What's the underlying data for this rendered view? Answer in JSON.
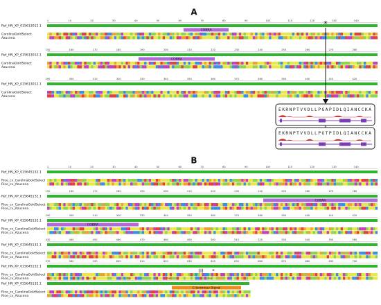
{
  "panels": [
    {
      "label": "A",
      "blocks": [
        {
          "ruler": [
            "1",
            "10",
            "20",
            "30",
            "40",
            "50",
            "60",
            "70",
            "80",
            "90",
            "100",
            "110",
            "120",
            "130",
            "140"
          ],
          "ref": "Ref_HN_XP_015613012.1",
          "rows": [
            "CarolinaGoldSelect",
            "Azucena"
          ],
          "features": [
            "COBRA"
          ],
          "marks": [
            "*"
          ]
        },
        {
          "ruler": [
            "150",
            "160",
            "170",
            "180",
            "190",
            "200",
            "210",
            "220",
            "230",
            "240",
            "250",
            "260",
            "270",
            "280"
          ],
          "ref": "Ref_HN_XP_015613012.1",
          "rows": [
            "CarolinaGoldSelect",
            "Azucena"
          ],
          "features": [
            "COBRA"
          ]
        },
        {
          "ruler": [
            "290",
            "300",
            "310",
            "320",
            "330",
            "340",
            "350",
            "360",
            "370",
            "380",
            "390",
            "400",
            "410",
            "420"
          ],
          "ref": "Ref_HN_XP_015613012.1",
          "rows": [
            "CarolinaGoldSelect",
            "Azucena"
          ]
        }
      ],
      "inset": [
        "EKRNPTVVDLLPGAPIDLQIANCCKA",
        "EKRNPTVVDLLPGTPIDLQIANCCKA"
      ]
    },
    {
      "label": "B",
      "blocks": [
        {
          "ruler": [
            "1",
            "10",
            "20",
            "30",
            "40",
            "50",
            "60",
            "70",
            "80",
            "90",
            "100",
            "110",
            "120",
            "130",
            "140"
          ],
          "ref": "Ref_HN_XP_015645132.1",
          "rows": [
            "Rice_cv_CarolinaGoldSelect",
            "Rice_cv_Azucena"
          ]
        },
        {
          "ruler": [
            "150",
            "160",
            "170",
            "180",
            "190",
            "200",
            "210",
            "220",
            "230",
            "240",
            "250",
            "260",
            "270",
            "280"
          ],
          "ref": "Ref_HN_XP_015645132.1",
          "rows": [
            "Rice_cv_CarolinaGoldSelect",
            "Rice_cv_Azucena"
          ],
          "features": [
            "COBRA"
          ]
        },
        {
          "ruler": [
            "290",
            "300",
            "310",
            "320",
            "330",
            "340",
            "350",
            "360",
            "370",
            "380",
            "390",
            "400",
            "410",
            "420"
          ],
          "ref": "Ref_HN_XP_015645132.1",
          "rows": [
            "Rice_cv_CarolinaGoldSelect",
            "Rice_cv_Azucena"
          ],
          "features": [
            "COBRA"
          ]
        },
        {
          "ruler": [
            "430",
            "440",
            "450",
            "460",
            "470",
            "480",
            "490",
            "500",
            "510",
            "520",
            "530",
            "540",
            "550",
            "560"
          ],
          "ref": "Ref_HN_XP_015645132.1",
          "rows": [
            "Rice_cv_CarolinaGoldSelect",
            "Rice_cv_Azucena"
          ]
        },
        {
          "ruler": [
            "570",
            "580",
            "590",
            "600",
            "610",
            "620",
            "630",
            "640",
            "650",
            "660",
            "670",
            "680",
            "690",
            "700"
          ],
          "ref": "Ref_HN_XP_015645132.1",
          "rows": [
            "Rice_cv_CarolinaGoldSelect",
            "Rice_cv_Azucena"
          ],
          "marks": [
            "(I)",
            "*"
          ]
        },
        {
          "ruler": [
            "710",
            "720",
            "730",
            "740",
            "750"
          ],
          "ref": "Ref_HN_XP_015645132.1",
          "rows": [
            "Rice_cv_CarolinaGoldSelect",
            "Rice_cv_Azucena"
          ],
          "features": [
            "C-terminus Signal"
          ]
        }
      ]
    }
  ]
}
